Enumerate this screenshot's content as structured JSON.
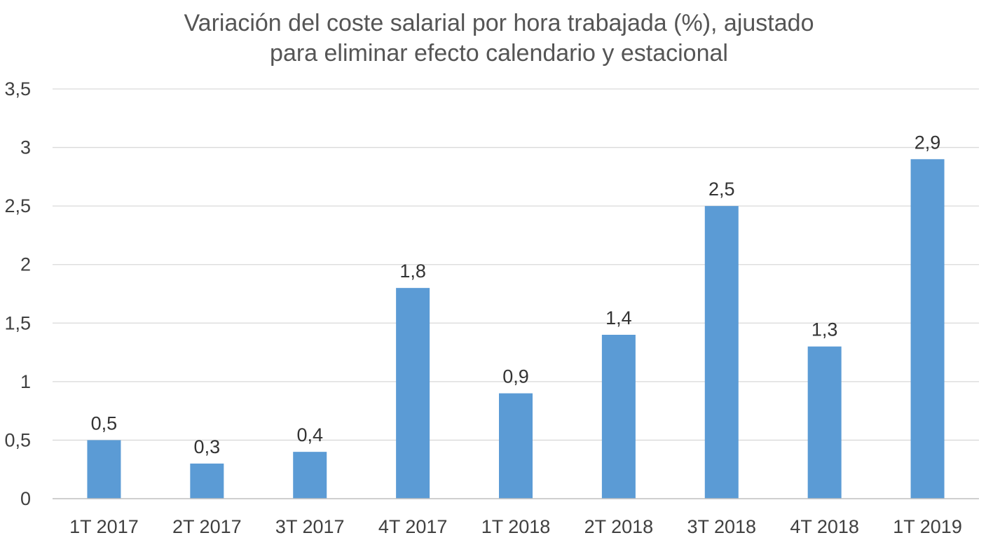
{
  "chart_data": {
    "type": "bar",
    "title_lines": [
      "Variación del coste salarial por hora trabajada (%), ajustado",
      "para eliminar efecto calendario y estacional"
    ],
    "categories": [
      "1T 2017",
      "2T 2017",
      "3T 2017",
      "4T 2017",
      "1T 2018",
      "2T 2018",
      "3T 2018",
      "4T 2018",
      "1T 2019"
    ],
    "values": [
      0.5,
      0.3,
      0.4,
      1.8,
      0.9,
      1.4,
      2.5,
      1.3,
      2.9
    ],
    "data_labels": [
      "0,5",
      "0,3",
      "0,4",
      "1,8",
      "0,9",
      "1,4",
      "2,5",
      "1,3",
      "2,9"
    ],
    "y_ticks": [
      0,
      0.5,
      1,
      1.5,
      2,
      2.5,
      3,
      3.5
    ],
    "y_tick_labels": [
      "0",
      "0,5",
      "1",
      "1,5",
      "2",
      "2,5",
      "3",
      "3,5"
    ],
    "ylim": [
      0,
      3.5
    ],
    "xlabel": "",
    "ylabel": "",
    "grid": true,
    "legend": "none",
    "colors": {
      "bar": "#5b9bd5",
      "grid": "#d9d9d9",
      "axis": "#bfbfbf"
    }
  }
}
